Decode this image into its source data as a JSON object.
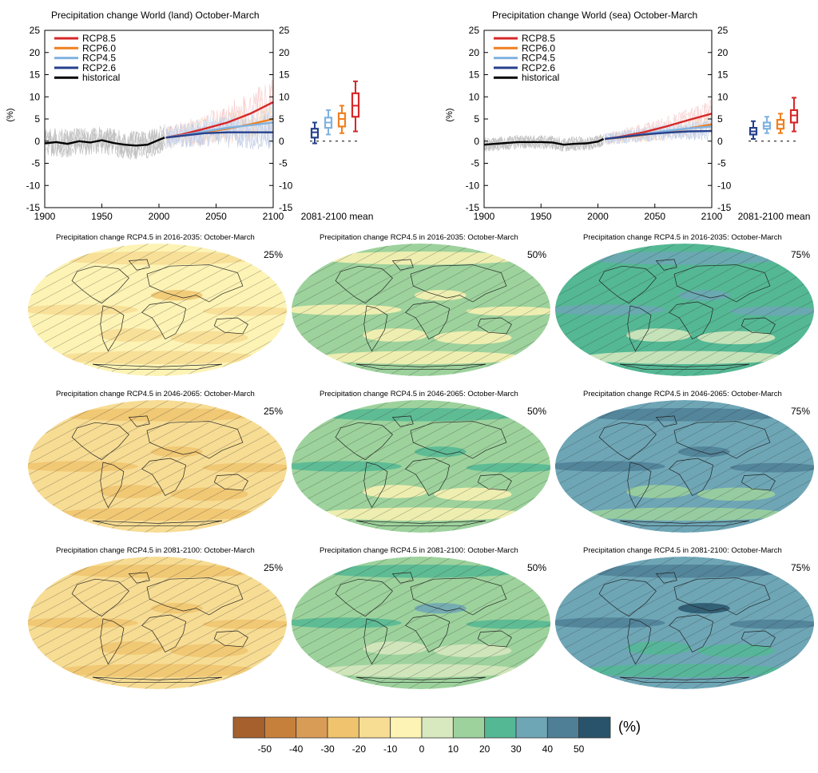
{
  "chart_data": [
    {
      "type": "line",
      "title": "Precipitation change World (land) October-March",
      "ylabel": "(%)",
      "xlim": [
        1900,
        2100
      ],
      "ylim": [
        -15,
        25
      ],
      "x_ticks": [
        1900,
        1950,
        2000,
        2050,
        2100
      ],
      "y_ticks": [
        -15,
        -10,
        -5,
        0,
        5,
        10,
        15,
        20,
        25
      ],
      "legend_position": "top-left",
      "series": [
        {
          "name": "RCP8.5",
          "color": "#d62728",
          "x": [
            2006,
            2020,
            2040,
            2060,
            2080,
            2100
          ],
          "values": [
            0.8,
            1.5,
            2.8,
            4.2,
            6.2,
            8.8
          ]
        },
        {
          "name": "RCP6.0",
          "color": "#f07f1e",
          "x": [
            2006,
            2020,
            2040,
            2060,
            2080,
            2100
          ],
          "values": [
            0.8,
            1.2,
            2.0,
            2.8,
            3.8,
            5.0
          ]
        },
        {
          "name": "RCP4.5",
          "color": "#7fb2e0",
          "x": [
            2006,
            2020,
            2040,
            2060,
            2080,
            2100
          ],
          "values": [
            0.8,
            1.3,
            2.2,
            3.0,
            3.6,
            4.2
          ]
        },
        {
          "name": "RCP2.6",
          "color": "#26408b",
          "x": [
            2006,
            2020,
            2040,
            2060,
            2080,
            2100
          ],
          "values": [
            0.8,
            1.2,
            1.8,
            2.0,
            2.0,
            2.0
          ]
        },
        {
          "name": "historical",
          "color": "#000000",
          "x": [
            1900,
            1910,
            1920,
            1930,
            1940,
            1950,
            1960,
            1970,
            1980,
            1990,
            2000,
            2005
          ],
          "values": [
            -0.5,
            -0.2,
            -0.6,
            0.0,
            -0.3,
            0.2,
            -0.4,
            -0.8,
            -1.0,
            -0.8,
            0.3,
            0.8
          ]
        }
      ],
      "box_title": "2081-2100 mean",
      "boxes": [
        {
          "name": "RCP2.6",
          "color": "#26408b",
          "min": -0.5,
          "q1": 0.8,
          "median": 2.0,
          "q3": 2.8,
          "max": 4.2
        },
        {
          "name": "RCP4.5",
          "color": "#7fb2e0",
          "min": 1.5,
          "q1": 3.0,
          "median": 4.2,
          "q3": 5.3,
          "max": 7.0
        },
        {
          "name": "RCP6.0",
          "color": "#f07f1e",
          "min": 1.8,
          "q1": 3.3,
          "median": 5.0,
          "q3": 6.3,
          "max": 8.0
        },
        {
          "name": "RCP8.5",
          "color": "#d62728",
          "min": 2.2,
          "q1": 5.5,
          "median": 8.0,
          "q3": 10.8,
          "max": 13.5
        }
      ]
    },
    {
      "type": "line",
      "title": "Precipitation change World (sea) October-March",
      "ylabel": "(%)",
      "xlim": [
        1900,
        2100
      ],
      "ylim": [
        -15,
        25
      ],
      "x_ticks": [
        1900,
        1950,
        2000,
        2050,
        2100
      ],
      "y_ticks": [
        -15,
        -10,
        -5,
        0,
        5,
        10,
        15,
        20,
        25
      ],
      "legend_position": "top-left",
      "series": [
        {
          "name": "RCP8.5",
          "color": "#d62728",
          "x": [
            2006,
            2020,
            2040,
            2060,
            2080,
            2100
          ],
          "values": [
            0.5,
            1.0,
            2.0,
            3.3,
            4.8,
            6.2
          ]
        },
        {
          "name": "RCP6.0",
          "color": "#f07f1e",
          "x": [
            2006,
            2020,
            2040,
            2060,
            2080,
            2100
          ],
          "values": [
            0.5,
            0.8,
            1.4,
            2.1,
            2.9,
            3.8
          ]
        },
        {
          "name": "RCP4.5",
          "color": "#7fb2e0",
          "x": [
            2006,
            2020,
            2040,
            2060,
            2080,
            2100
          ],
          "values": [
            0.5,
            0.9,
            1.6,
            2.3,
            2.9,
            3.3
          ]
        },
        {
          "name": "RCP2.6",
          "color": "#26408b",
          "x": [
            2006,
            2020,
            2040,
            2060,
            2080,
            2100
          ],
          "values": [
            0.5,
            0.9,
            1.5,
            1.9,
            2.2,
            2.3
          ]
        },
        {
          "name": "historical",
          "color": "#000000",
          "x": [
            1900,
            1910,
            1920,
            1930,
            1940,
            1950,
            1960,
            1970,
            1980,
            1990,
            2000,
            2005
          ],
          "values": [
            -0.8,
            -0.6,
            -0.4,
            -0.2,
            -0.2,
            -0.2,
            -0.3,
            -0.8,
            -0.6,
            -0.5,
            -0.1,
            0.5
          ]
        }
      ],
      "box_title": "2081-2100 mean",
      "boxes": [
        {
          "name": "RCP2.6",
          "color": "#26408b",
          "min": 0.5,
          "q1": 1.5,
          "median": 2.2,
          "q3": 3.0,
          "max": 4.5
        },
        {
          "name": "RCP4.5",
          "color": "#7fb2e0",
          "min": 1.8,
          "q1": 2.8,
          "median": 3.4,
          "q3": 4.2,
          "max": 5.5
        },
        {
          "name": "RCP6.0",
          "color": "#f07f1e",
          "min": 1.8,
          "q1": 2.8,
          "median": 3.8,
          "q3": 4.8,
          "max": 6.2
        },
        {
          "name": "RCP8.5",
          "color": "#d62728",
          "min": 2.2,
          "q1": 4.2,
          "median": 5.8,
          "q3": 7.0,
          "max": 9.8
        }
      ]
    },
    {
      "type": "heatmap",
      "colorbar_unit": "(%)",
      "colorbar_ticks": [
        "-50",
        "-40",
        "-30",
        "-20",
        "-10",
        "0",
        "10",
        "20",
        "30",
        "40",
        "50"
      ],
      "colorbar_colors": [
        "#a6602e",
        "#c7803b",
        "#d99c57",
        "#f0c46e",
        "#f7dc93",
        "#fdf3b4",
        "#d9e9bf",
        "#9dd29c",
        "#54b894",
        "#6ea6b6",
        "#4f7f96",
        "#28536b"
      ],
      "maps": [
        {
          "title": "Precipitation change RCP4.5 in 2016-2035: October-March",
          "percentile": "25%",
          "wetness": -0.3
        },
        {
          "title": "Precipitation change RCP4.5 in 2016-2035: October-March",
          "percentile": "50%",
          "wetness": 0.0
        },
        {
          "title": "Precipitation change RCP4.5 in 2016-2035: October-March",
          "percentile": "75%",
          "wetness": 0.35
        },
        {
          "title": "Precipitation change RCP4.5 in 2046-2065: October-March",
          "percentile": "25%",
          "wetness": -0.45
        },
        {
          "title": "Precipitation change RCP4.5 in 2046-2065: October-March",
          "percentile": "50%",
          "wetness": 0.1
        },
        {
          "title": "Precipitation change RCP4.5 in 2046-2065: October-March",
          "percentile": "75%",
          "wetness": 0.55
        },
        {
          "title": "Precipitation change RCP4.5 in 2081-2100: October-March",
          "percentile": "25%",
          "wetness": -0.5
        },
        {
          "title": "Precipitation change RCP4.5 in 2081-2100: October-March",
          "percentile": "50%",
          "wetness": 0.2
        },
        {
          "title": "Precipitation change RCP4.5 in 2081-2100: October-March",
          "percentile": "75%",
          "wetness": 0.7
        }
      ]
    }
  ]
}
